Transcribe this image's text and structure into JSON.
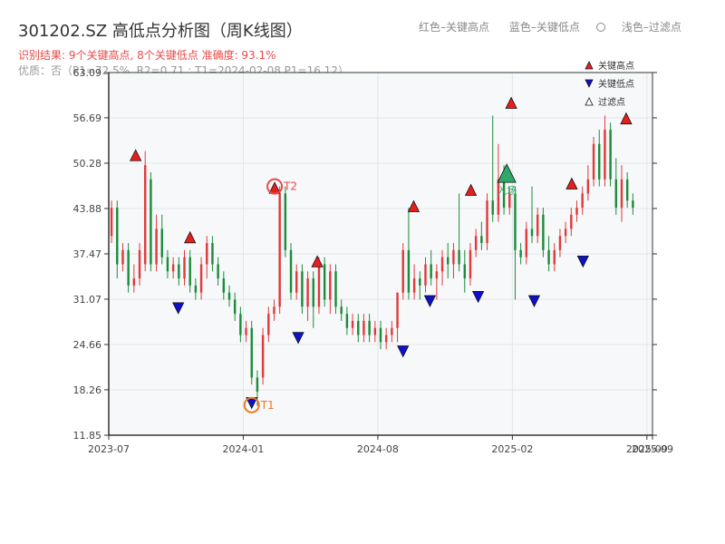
{
  "header": {
    "title": "301202.SZ 高低点分析图（周K线图）",
    "legend_red": "红色–关键高点",
    "legend_blue": "蓝色–关键低点",
    "legend_faded": "浅色–过滤点",
    "result": "识别结果: 9个关键高点, 8个关键低点  准确度: 93.1%",
    "quality": "优质：否（P1=72.5%, R2=0.71 ; T1=2024-02-08 P1=16.12）"
  },
  "chart_data": {
    "type": "candlestick",
    "y_ticks": [
      "11.85",
      "18.26",
      "24.66",
      "31.07",
      "37.47",
      "43.88",
      "50.28",
      "56.69",
      "63.09"
    ],
    "y_range": [
      11.85,
      63.09
    ],
    "x_ticks": [
      {
        "label": "2023-07",
        "week": 0
      },
      {
        "label": "2024-01",
        "week": 24
      },
      {
        "label": "2024-08",
        "week": 48
      },
      {
        "label": "2025-02",
        "week": 72
      },
      {
        "label": "2025-09",
        "week": 96
      },
      {
        "label": "2025-09",
        "week": 97
      }
    ],
    "x_range": [
      0,
      97
    ],
    "grid": true,
    "legend": {
      "position": "top-right",
      "entries": [
        "关键高点",
        "关键低点",
        "过滤点"
      ]
    },
    "colors": {
      "up": "#e03a3a",
      "down": "#1a8c3a",
      "high_marker": "#e81e1e",
      "low_marker": "#1010cc",
      "entry": "#2ea86b",
      "circle_t": "#e87a2a",
      "circle_t2": "#e84a4a",
      "panel": "#f7f8fa",
      "grid": "#e3e6ea"
    },
    "candles": [
      [
        40,
        44,
        45,
        39
      ],
      [
        44,
        36,
        45,
        34
      ],
      [
        36,
        38,
        39,
        35
      ],
      [
        38,
        33,
        39,
        32
      ],
      [
        33,
        34,
        36,
        32
      ],
      [
        34,
        38,
        39,
        33
      ],
      [
        36,
        50,
        52,
        35
      ],
      [
        48,
        36,
        49,
        35
      ],
      [
        36,
        41,
        43,
        35
      ],
      [
        41,
        37,
        43,
        36
      ],
      [
        37,
        35,
        38,
        34
      ],
      [
        35,
        36,
        37,
        34
      ],
      [
        36,
        34,
        37,
        33
      ],
      [
        34,
        37,
        38,
        33
      ],
      [
        37,
        33,
        38,
        32
      ],
      [
        33,
        32,
        34,
        31
      ],
      [
        32,
        36,
        37,
        31
      ],
      [
        36,
        39,
        40,
        34
      ],
      [
        39,
        36,
        40,
        35
      ],
      [
        36,
        34,
        37,
        33
      ],
      [
        34,
        32,
        35,
        31
      ],
      [
        32,
        31,
        33,
        30
      ],
      [
        31,
        29,
        32,
        28
      ],
      [
        29,
        26,
        30,
        25
      ],
      [
        26,
        27,
        28,
        25
      ],
      [
        27,
        20,
        28,
        19
      ],
      [
        20,
        18,
        21,
        16
      ],
      [
        20,
        26,
        27,
        19
      ],
      [
        26,
        29,
        30,
        25
      ],
      [
        29,
        30,
        31,
        28
      ],
      [
        30,
        46,
        47,
        29
      ],
      [
        46,
        38,
        47,
        37
      ],
      [
        38,
        32,
        39,
        31
      ],
      [
        32,
        35,
        36,
        31
      ],
      [
        35,
        30,
        36,
        29
      ],
      [
        30,
        34,
        35,
        28
      ],
      [
        34,
        30,
        35,
        27
      ],
      [
        30,
        36,
        37,
        29
      ],
      [
        36,
        31,
        37,
        30
      ],
      [
        31,
        35,
        36,
        29
      ],
      [
        35,
        30,
        36,
        29
      ],
      [
        30,
        29,
        31,
        28
      ],
      [
        29,
        27,
        30,
        26
      ],
      [
        27,
        28,
        29,
        26
      ],
      [
        28,
        26,
        29,
        25
      ],
      [
        26,
        28,
        29,
        25
      ],
      [
        28,
        26,
        29,
        25
      ],
      [
        26,
        27,
        28,
        25
      ],
      [
        27,
        25,
        28,
        24
      ],
      [
        25,
        26,
        27,
        24
      ],
      [
        26,
        27,
        28,
        25
      ],
      [
        27,
        32,
        32,
        25
      ],
      [
        32,
        38,
        39,
        31
      ],
      [
        38,
        32,
        44,
        31
      ],
      [
        32,
        34,
        36,
        31
      ],
      [
        34,
        33,
        35,
        31
      ],
      [
        33,
        36,
        37,
        32
      ],
      [
        36,
        34,
        38,
        33
      ],
      [
        34,
        35,
        36,
        31
      ],
      [
        35,
        37,
        38,
        33
      ],
      [
        37,
        36,
        39,
        34
      ],
      [
        36,
        38,
        39,
        34
      ],
      [
        38,
        36,
        46,
        35
      ],
      [
        36,
        34,
        38,
        32
      ],
      [
        34,
        38,
        39,
        33
      ],
      [
        38,
        40,
        41,
        37
      ],
      [
        40,
        39,
        42,
        38
      ],
      [
        39,
        45,
        46,
        38
      ],
      [
        45,
        43,
        57,
        42
      ],
      [
        43,
        48,
        53,
        42
      ],
      [
        48,
        44,
        50,
        43
      ],
      [
        44,
        46,
        47,
        43
      ],
      [
        46,
        38,
        47,
        31
      ],
      [
        38,
        37,
        39,
        36
      ],
      [
        37,
        41,
        42,
        36
      ],
      [
        41,
        40,
        47,
        39
      ],
      [
        40,
        43,
        44,
        39
      ],
      [
        43,
        38,
        44,
        37
      ],
      [
        38,
        36,
        40,
        35
      ],
      [
        36,
        38,
        39,
        35
      ],
      [
        38,
        40,
        41,
        37
      ],
      [
        40,
        41,
        42,
        39
      ],
      [
        41,
        43,
        44,
        40
      ],
      [
        43,
        44,
        45,
        42
      ],
      [
        44,
        46,
        47,
        43
      ],
      [
        46,
        48,
        50,
        45
      ],
      [
        48,
        53,
        54,
        47
      ],
      [
        53,
        48,
        55,
        47
      ],
      [
        48,
        55,
        57,
        47
      ],
      [
        55,
        48,
        56,
        47
      ],
      [
        48,
        44,
        51,
        43
      ],
      [
        44,
        48,
        50,
        42
      ],
      [
        48,
        45,
        49,
        44
      ],
      [
        45,
        44,
        46,
        43
      ]
    ],
    "key_highs": [
      {
        "week": 4.8,
        "value": 51.4
      },
      {
        "week": 14.5,
        "value": 39.8
      },
      {
        "week": 29.6,
        "value": 46.8
      },
      {
        "week": 37.2,
        "value": 36.4
      },
      {
        "week": 54.4,
        "value": 44.2
      },
      {
        "week": 64.6,
        "value": 46.5
      },
      {
        "week": 71.8,
        "value": 58.8
      },
      {
        "week": 82.6,
        "value": 47.4
      },
      {
        "week": 92.3,
        "value": 56.6
      }
    ],
    "key_lows": [
      {
        "week": 12.4,
        "value": 29.8
      },
      {
        "week": 25.5,
        "value": 16.4
      },
      {
        "week": 33.8,
        "value": 25.6
      },
      {
        "week": 52.5,
        "value": 23.7
      },
      {
        "week": 57.3,
        "value": 30.8
      },
      {
        "week": 65.9,
        "value": 31.4
      },
      {
        "week": 75.9,
        "value": 30.8
      },
      {
        "week": 84.6,
        "value": 36.4
      }
    ],
    "annotations": [
      {
        "label": "T1",
        "week": 25.5,
        "value": 16.1
      },
      {
        "label": "T2",
        "week": 29.6,
        "value": 47.0
      },
      {
        "label": "入场",
        "week": 71.0,
        "value": 48.6
      }
    ]
  }
}
